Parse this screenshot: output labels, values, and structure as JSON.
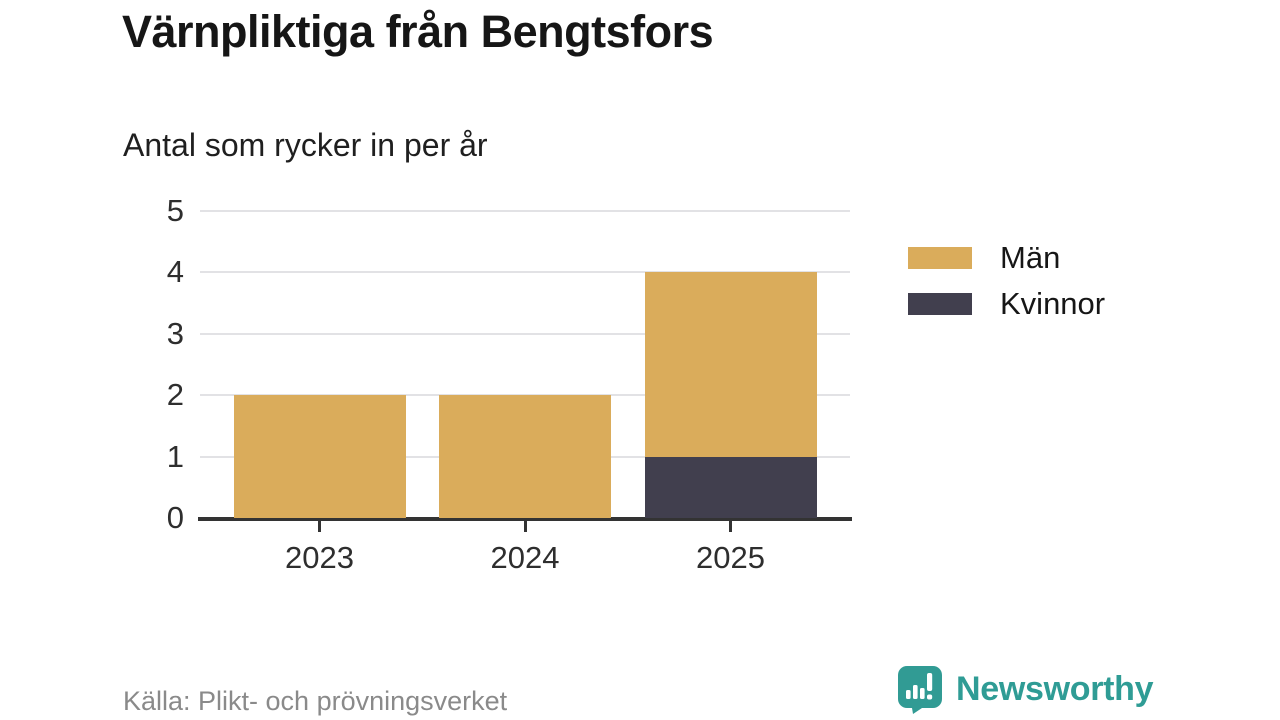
{
  "chart_data": {
    "type": "bar",
    "stacked": true,
    "title": "Värnpliktiga från Bengtsfors",
    "subtitle": "Antal som rycker in per år",
    "categories": [
      "2023",
      "2024",
      "2025"
    ],
    "series": [
      {
        "name": "Män",
        "color": "#DAAC5B",
        "values": [
          2,
          2,
          3
        ]
      },
      {
        "name": "Kvinnor",
        "color": "#413F4E",
        "values": [
          0,
          0,
          1
        ]
      }
    ],
    "totals": [
      2,
      2,
      4
    ],
    "xlabel": "",
    "ylabel": "",
    "ylim": [
      0,
      5
    ],
    "yticks": [
      0,
      1,
      2,
      3,
      4,
      5
    ],
    "grid": true,
    "legend_position": "right"
  },
  "footer": {
    "source": "Källa: Plikt- och prövningsverket",
    "brand": "Newsworthy"
  },
  "colors": {
    "accent_teal": "#2F9C95",
    "axis": "#333333",
    "grid": "#E2E2E5",
    "tick_text": "#2E2E2E",
    "title_text": "#161616",
    "source_text": "#8A8A8A"
  }
}
